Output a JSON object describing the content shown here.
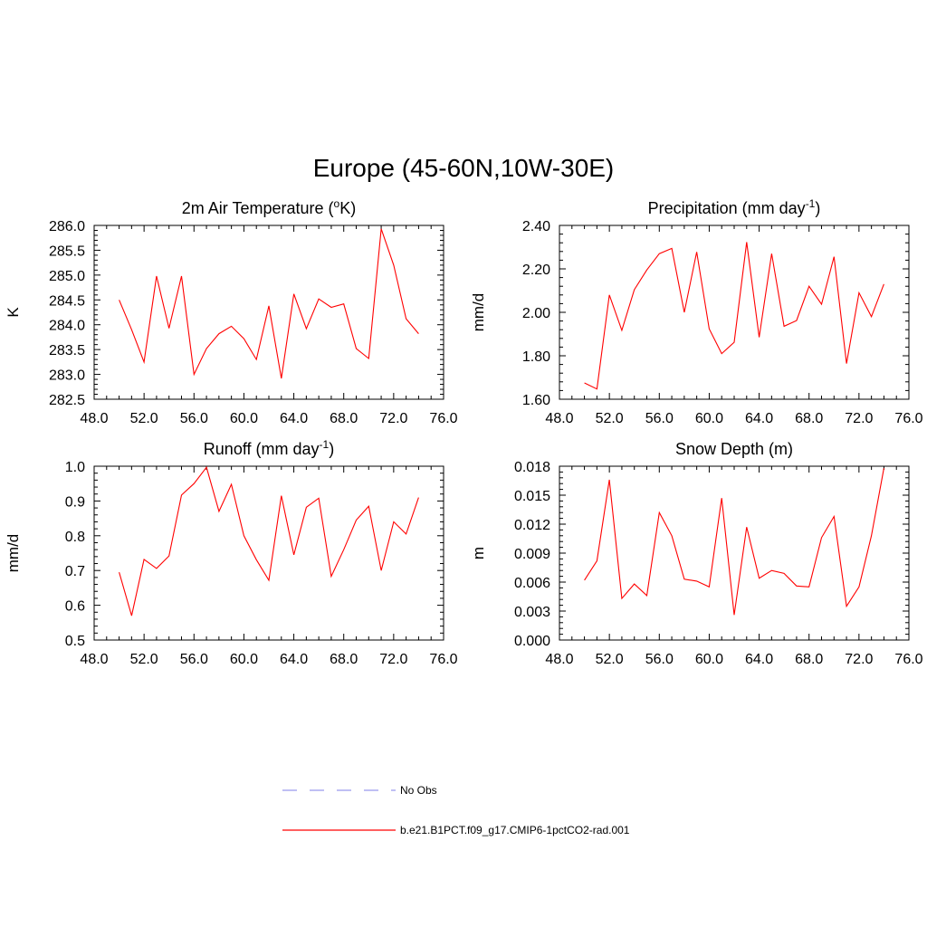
{
  "page_title": "Europe (45-60N,10W-30E)",
  "colors": {
    "model": "#ff0000",
    "obs": "#9999ee",
    "axis": "#000000"
  },
  "legend": {
    "obs_label": "No Obs",
    "model_label": "b.e21.B1PCT.f09_g17.CMIP6-1pctCO2-rad.001"
  },
  "chart_data": [
    {
      "type": "line",
      "title_main": "2m Air Temperature (",
      "title_sup": "o",
      "title_tail": "K)",
      "ylabel": "K",
      "xlim": [
        48,
        76
      ],
      "ylim": [
        282.5,
        286.0
      ],
      "x_ticks": [
        "48.0",
        "52.0",
        "56.0",
        "60.0",
        "64.0",
        "68.0",
        "72.0",
        "76.0"
      ],
      "y_ticks": [
        "282.5",
        "283.0",
        "283.5",
        "284.0",
        "284.5",
        "285.0",
        "285.5",
        "286.0"
      ],
      "series": [
        {
          "name": "b.e21.B1PCT.f09_g17.CMIP6-1pctCO2-rad.001",
          "x": [
            50,
            51,
            52,
            53,
            54,
            55,
            56,
            57,
            58,
            59,
            60,
            61,
            62,
            63,
            64,
            65,
            66,
            67,
            68,
            69,
            70,
            71,
            72,
            73,
            74
          ],
          "y": [
            284.5,
            283.9,
            283.25,
            284.98,
            283.93,
            284.98,
            283.0,
            283.52,
            283.82,
            283.97,
            283.72,
            283.3,
            284.38,
            282.92,
            284.62,
            283.92,
            284.52,
            284.35,
            284.42,
            283.52,
            283.32,
            285.93,
            285.2,
            284.12,
            283.82
          ]
        }
      ]
    },
    {
      "type": "line",
      "title_main": "Precipitation (mm day",
      "title_sup": "-1",
      "title_tail": ")",
      "ylabel": "mm/d",
      "xlim": [
        48,
        76
      ],
      "ylim": [
        1.6,
        2.4
      ],
      "x_ticks": [
        "48.0",
        "52.0",
        "56.0",
        "60.0",
        "64.0",
        "68.0",
        "72.0",
        "76.0"
      ],
      "y_ticks": [
        "1.60",
        "1.80",
        "2.00",
        "2.20",
        "2.40"
      ],
      "series": [
        {
          "name": "b.e21.B1PCT.f09_g17.CMIP6-1pctCO2-rad.001",
          "x": [
            50,
            51,
            52,
            53,
            54,
            55,
            56,
            57,
            58,
            59,
            60,
            61,
            62,
            63,
            64,
            65,
            66,
            67,
            68,
            69,
            70,
            71,
            72,
            73,
            74
          ],
          "y": [
            1.675,
            1.647,
            2.08,
            1.917,
            2.104,
            2.195,
            2.27,
            2.294,
            2.0,
            2.278,
            1.924,
            1.81,
            1.862,
            2.323,
            1.885,
            2.27,
            1.936,
            1.962,
            2.12,
            2.037,
            2.256,
            1.764,
            2.09,
            1.98,
            2.13
          ]
        }
      ]
    },
    {
      "type": "line",
      "title_main": "Runoff (mm day",
      "title_sup": "-1",
      "title_tail": ")",
      "ylabel": "mm/d",
      "xlim": [
        48,
        76
      ],
      "ylim": [
        0.5,
        1.0
      ],
      "x_ticks": [
        "48.0",
        "52.0",
        "56.0",
        "60.0",
        "64.0",
        "68.0",
        "72.0",
        "76.0"
      ],
      "y_ticks": [
        "0.5",
        "0.6",
        "0.7",
        "0.8",
        "0.9",
        "1.0"
      ],
      "series": [
        {
          "name": "b.e21.B1PCT.f09_g17.CMIP6-1pctCO2-rad.001",
          "x": [
            50,
            51,
            52,
            53,
            54,
            55,
            56,
            57,
            58,
            59,
            60,
            61,
            62,
            63,
            64,
            65,
            66,
            67,
            68,
            69,
            70,
            71,
            72,
            73,
            74
          ],
          "y": [
            0.695,
            0.57,
            0.732,
            0.706,
            0.742,
            0.917,
            0.95,
            0.997,
            0.87,
            0.948,
            0.8,
            0.731,
            0.672,
            0.915,
            0.745,
            0.882,
            0.908,
            0.683,
            0.76,
            0.845,
            0.885,
            0.7,
            0.84,
            0.805,
            0.91
          ]
        }
      ]
    },
    {
      "type": "line",
      "title_main": "Snow Depth (m)",
      "title_sup": "",
      "title_tail": "",
      "ylabel": "m",
      "xlim": [
        48,
        76
      ],
      "ylim": [
        0.0,
        0.018
      ],
      "x_ticks": [
        "48.0",
        "52.0",
        "56.0",
        "60.0",
        "64.0",
        "68.0",
        "72.0",
        "76.0"
      ],
      "y_ticks": [
        "0.000",
        "0.003",
        "0.006",
        "0.009",
        "0.012",
        "0.015",
        "0.018"
      ],
      "series": [
        {
          "name": "b.e21.B1PCT.f09_g17.CMIP6-1pctCO2-rad.001",
          "x": [
            50,
            51,
            52,
            53,
            54,
            55,
            56,
            57,
            58,
            59,
            60,
            61,
            62,
            63,
            64,
            65,
            66,
            67,
            68,
            69,
            70,
            71,
            72,
            73,
            74
          ],
          "y": [
            0.0062,
            0.0082,
            0.0166,
            0.0043,
            0.0058,
            0.0046,
            0.0132,
            0.0108,
            0.0063,
            0.0061,
            0.0055,
            0.0147,
            0.0026,
            0.0117,
            0.0064,
            0.0072,
            0.0069,
            0.0056,
            0.0055,
            0.0106,
            0.0128,
            0.0035,
            0.0055,
            0.0108,
            0.0178
          ]
        }
      ]
    }
  ]
}
